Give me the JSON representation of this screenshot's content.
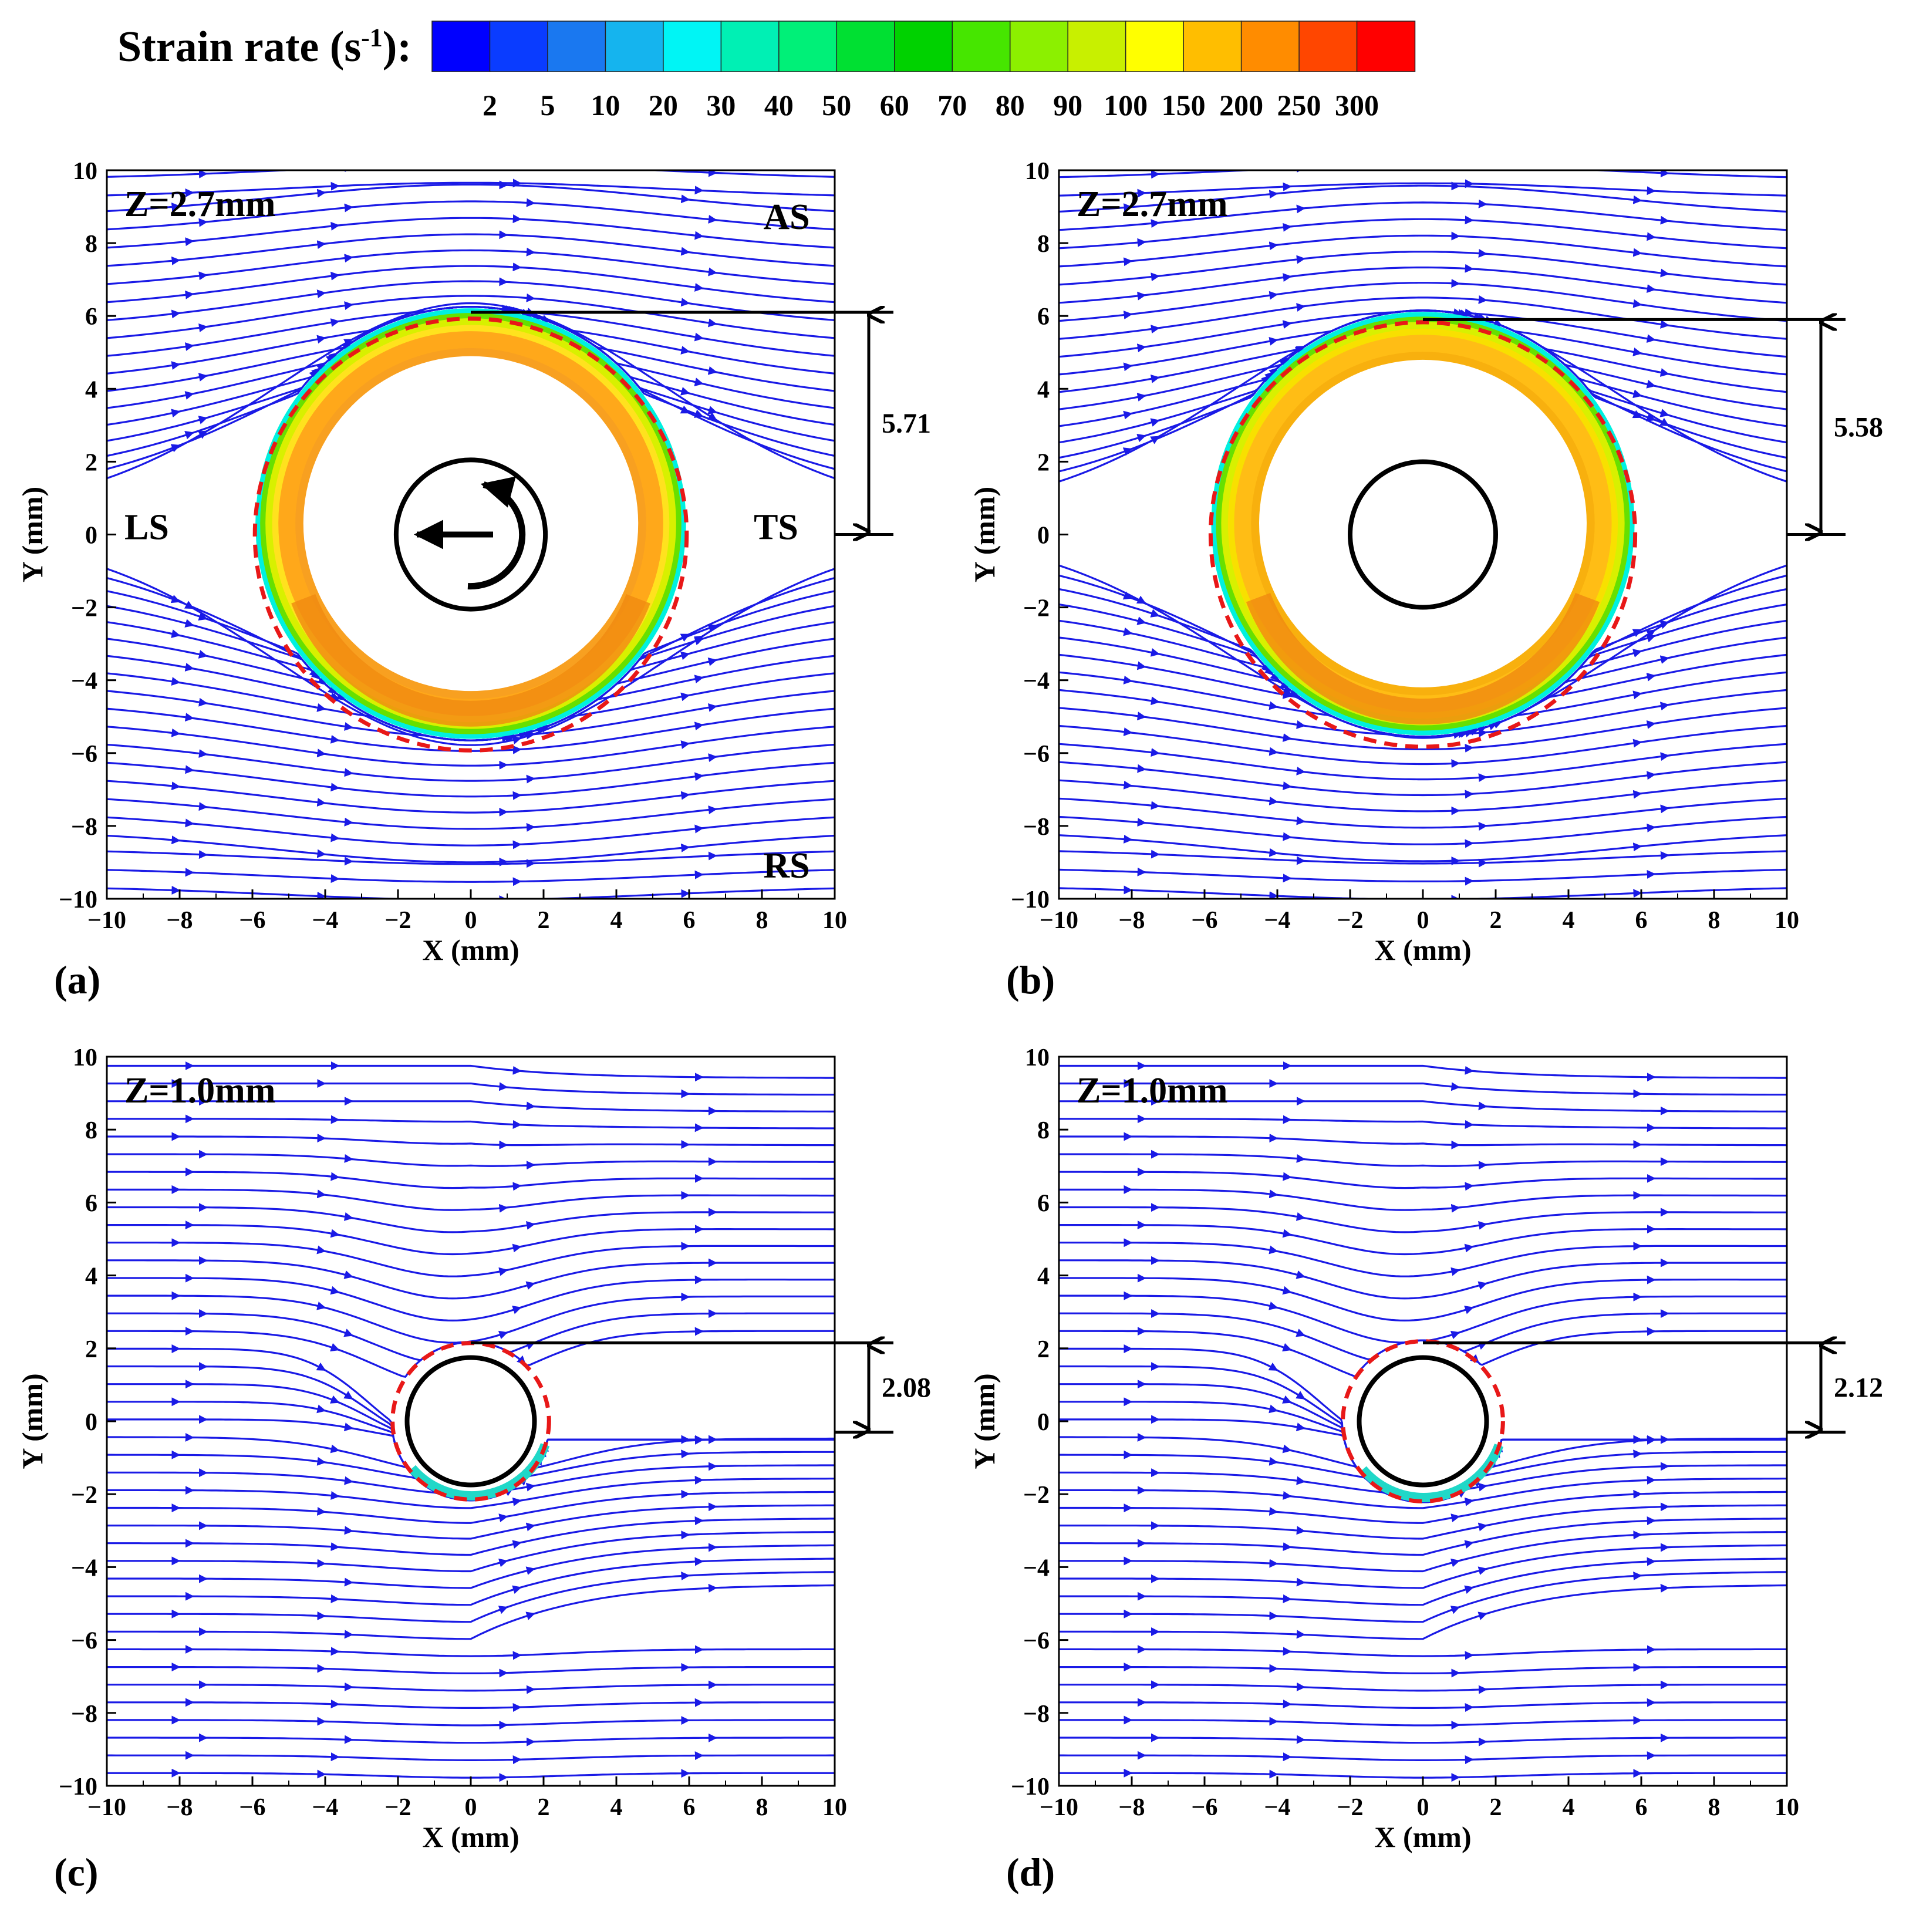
{
  "legend": {
    "title_main": "Strain rate (s",
    "title_sup": "-1",
    "title_end": "):",
    "ticks": [
      "2",
      "5",
      "10",
      "20",
      "30",
      "40",
      "50",
      "60",
      "70",
      "80",
      "90",
      "100",
      "150",
      "200",
      "250",
      "300"
    ],
    "colors": [
      "#0000ff",
      "#0a3cff",
      "#1a78f0",
      "#15b4ee",
      "#00f5f5",
      "#00f0b4",
      "#00f078",
      "#00e032",
      "#00d200",
      "#46e600",
      "#8cf000",
      "#c8f000",
      "#ffff00",
      "#ffbe00",
      "#ff8c00",
      "#ff4600",
      "#ff0000"
    ]
  },
  "chart_data": [
    {
      "type": "streamline",
      "panel_label": "(a)",
      "annotation": "Z=2.7mm",
      "xlabel": "X (mm)",
      "ylabel": "Y (mm)",
      "xlim": [
        -10,
        10
      ],
      "ylim": [
        -10,
        10
      ],
      "xticks": [
        "-10",
        "-8",
        "-6",
        "-4",
        "-2",
        "0",
        "2",
        "4",
        "6",
        "8",
        "10"
      ],
      "yticks": [
        "-10",
        "-8",
        "-6",
        "-4",
        "-2",
        "0",
        "2",
        "4",
        "6",
        "8",
        "10"
      ],
      "region_labels": [
        "AS",
        "RS",
        "LS",
        "TS"
      ],
      "zone_radius_mm": 5.9,
      "tool_radius_mm": 4.6,
      "flow_offset_mm": 0.3,
      "dimension_value": "5.71",
      "dimension_range": [
        0,
        6.1
      ],
      "tool_symbol": true
    },
    {
      "type": "streamline",
      "panel_label": "(b)",
      "annotation": "Z=2.7mm",
      "xlabel": "X (mm)",
      "ylabel": "Y (mm)",
      "xlim": [
        -10,
        10
      ],
      "ylim": [
        -10,
        10
      ],
      "xticks": [
        "-10",
        "-8",
        "-6",
        "-4",
        "-2",
        "0",
        "2",
        "4",
        "6",
        "8",
        "10"
      ],
      "yticks": [
        "-10",
        "-8",
        "-6",
        "-4",
        "-2",
        "0",
        "2",
        "4",
        "6",
        "8",
        "10"
      ],
      "zone_radius_mm": 5.8,
      "tool_radius_mm": 4.5,
      "inner_circle_radius_mm": 2.0,
      "flow_offset_mm": 0.3,
      "dimension_value": "5.58",
      "dimension_range": [
        0,
        5.9
      ],
      "tool_symbol": false
    },
    {
      "type": "streamline",
      "panel_label": "(c)",
      "annotation": "Z=1.0mm",
      "xlabel": "X (mm)",
      "ylabel": "Y (mm)",
      "xlim": [
        -10,
        10
      ],
      "ylim": [
        -10,
        10
      ],
      "xticks": [
        "-10",
        "-8",
        "-6",
        "-4",
        "-2",
        "0",
        "2",
        "4",
        "6",
        "8",
        "10"
      ],
      "yticks": [
        "-10",
        "-8",
        "-6",
        "-4",
        "-2",
        "0",
        "2",
        "4",
        "6",
        "8",
        "10"
      ],
      "zone_radius_mm": 2.15,
      "inner_circle_radius_mm": 1.75,
      "flow_offset_mm": 0.0,
      "dimension_value": "2.08",
      "dimension_range": [
        -0.3,
        2.15
      ],
      "tool_symbol": false
    },
    {
      "type": "streamline",
      "panel_label": "(d)",
      "annotation": "Z=1.0mm",
      "xlabel": "X (mm)",
      "ylabel": "Y (mm)",
      "xlim": [
        -10,
        10
      ],
      "ylim": [
        -10,
        10
      ],
      "xticks": [
        "-10",
        "-8",
        "-6",
        "-4",
        "-2",
        "0",
        "2",
        "4",
        "6",
        "8",
        "10"
      ],
      "yticks": [
        "-10",
        "-8",
        "-6",
        "-4",
        "-2",
        "0",
        "2",
        "4",
        "6",
        "8",
        "10"
      ],
      "zone_radius_mm": 2.2,
      "inner_circle_radius_mm": 1.75,
      "flow_offset_mm": 0.0,
      "dimension_value": "2.12",
      "dimension_range": [
        -0.3,
        2.15
      ],
      "tool_symbol": false
    }
  ]
}
